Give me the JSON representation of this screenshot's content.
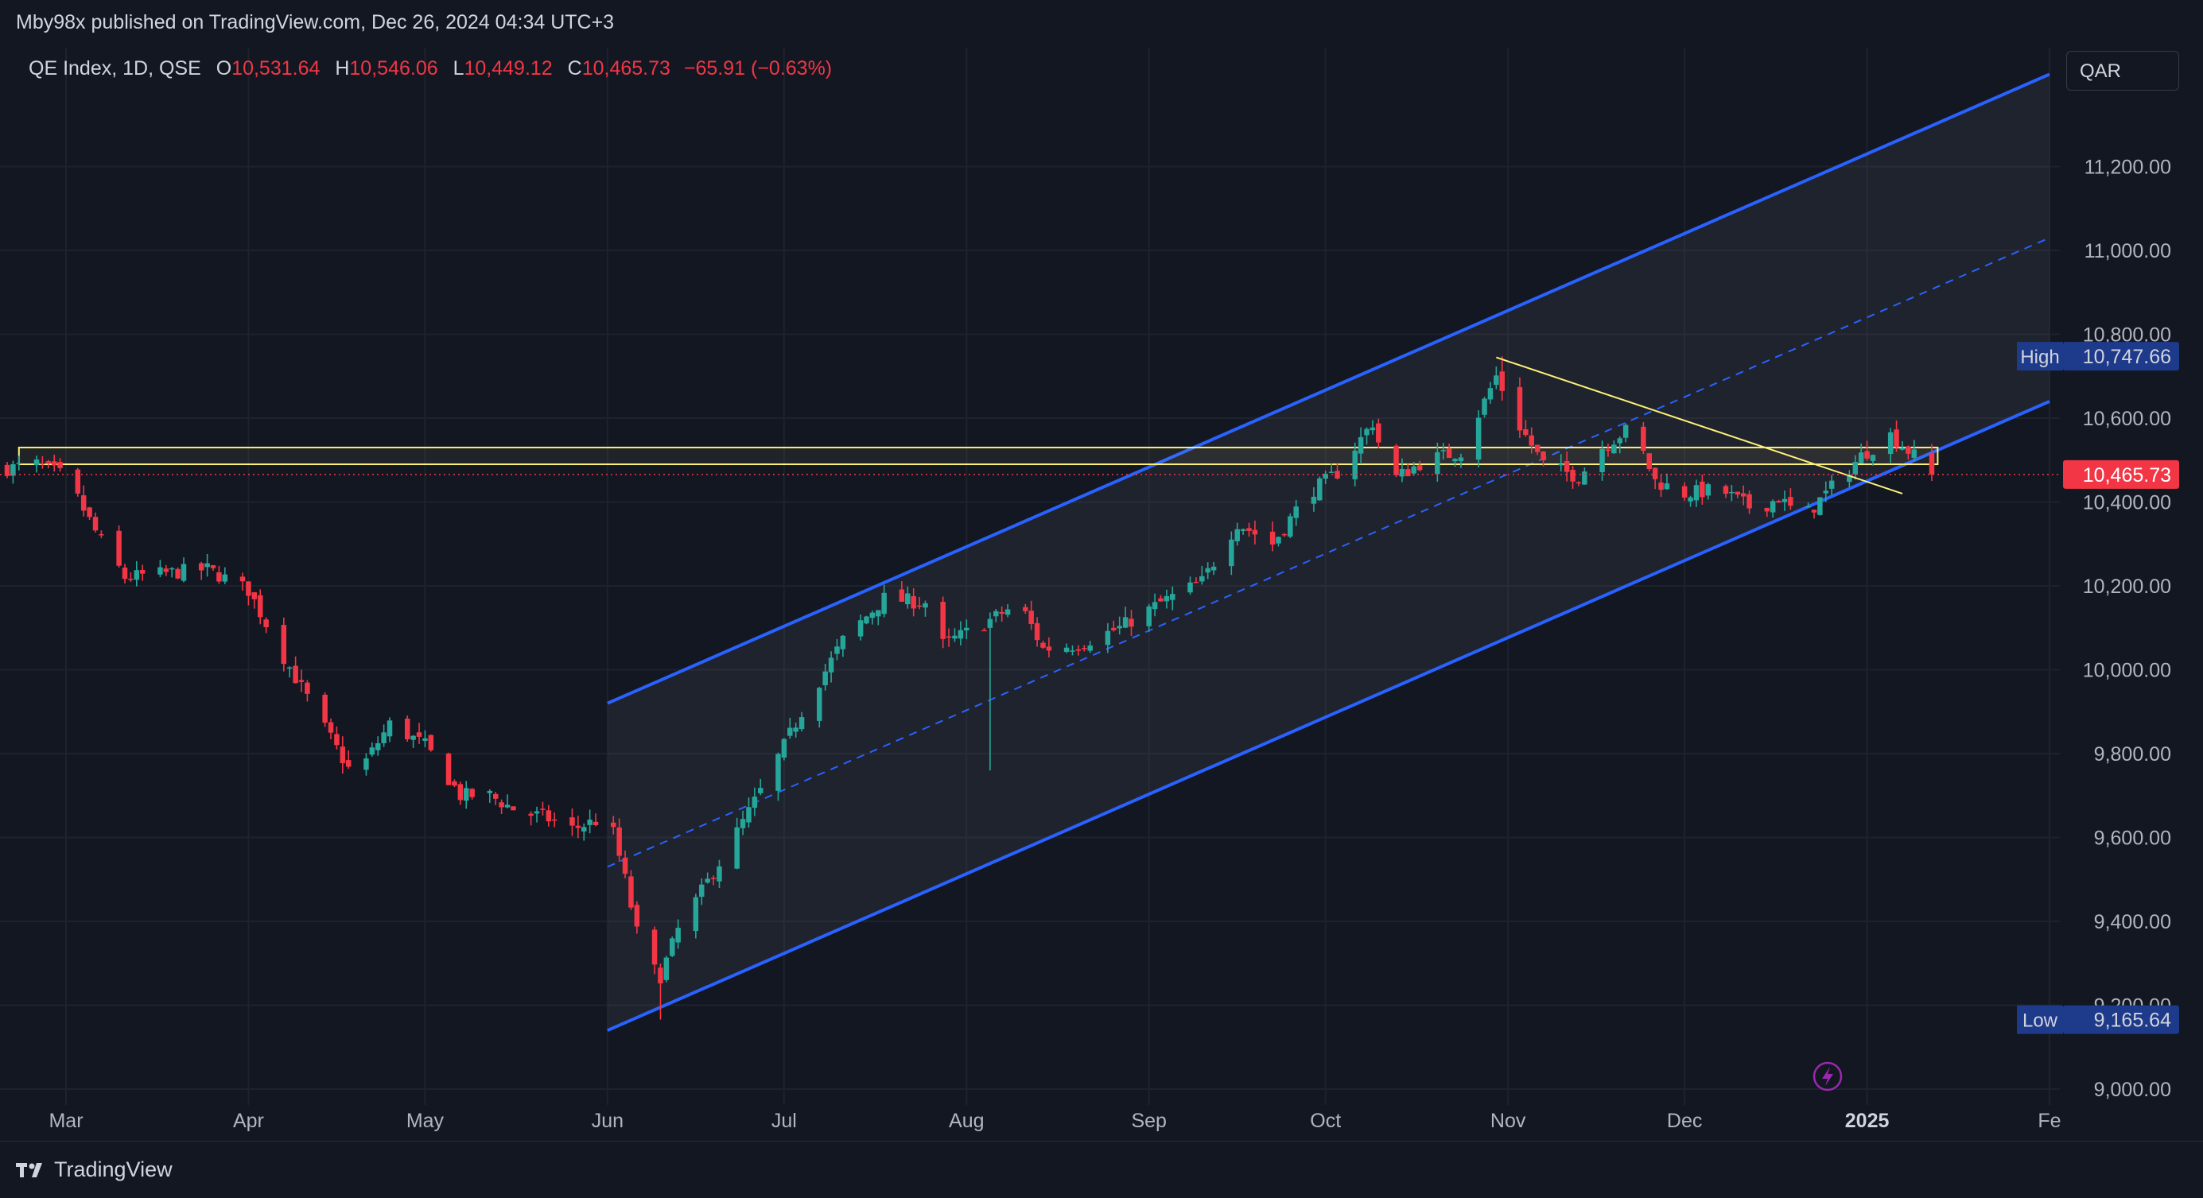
{
  "header": {
    "published_text": "Mby98x published on TradingView.com, Dec 26, 2024 04:34 UTC+3"
  },
  "legend": {
    "symbol": "QE Index, 1D, QSE",
    "open_label": "O",
    "open": "10,531.64",
    "high_label": "H",
    "high": "10,546.06",
    "low_label": "L",
    "low": "10,449.12",
    "close_label": "C",
    "close": "10,465.73",
    "change": "−65.91 (−0.63%)"
  },
  "currency": "QAR",
  "footer": {
    "brand": "TradingView"
  },
  "colors": {
    "background": "#131722",
    "grid": "#1e222d",
    "up": "#26a69a",
    "down": "#f23645",
    "channel": "#2962ff",
    "trendline": "#fbf179",
    "axis_text": "#b2b5be"
  },
  "chart_data": {
    "type": "candlestick",
    "title": "QE Index, 1D, QSE",
    "xlabel": "",
    "ylabel": "",
    "ylim": [
      9000,
      11450
    ],
    "y_ticks": [
      "11,200.00",
      "11,000.00",
      "10,800.00",
      "10,600.00",
      "10,400.00",
      "10,200.00",
      "10,000.00",
      "9,800.00",
      "9,600.00",
      "9,400.00",
      "9,200.00",
      "9,000.00"
    ],
    "y_tick_values": [
      11200,
      11000,
      10800,
      10600,
      10400,
      10200,
      10000,
      9800,
      9600,
      9400,
      9200,
      9000
    ],
    "x_ticks": [
      {
        "label": "Mar",
        "date": "2024-03-01"
      },
      {
        "label": "Apr",
        "date": "2024-04-01"
      },
      {
        "label": "May",
        "date": "2024-05-01"
      },
      {
        "label": "Jun",
        "date": "2024-06-01"
      },
      {
        "label": "Jul",
        "date": "2024-07-01"
      },
      {
        "label": "Aug",
        "date": "2024-08-01"
      },
      {
        "label": "Sep",
        "date": "2024-09-01"
      },
      {
        "label": "Oct",
        "date": "2024-10-01"
      },
      {
        "label": "Nov",
        "date": "2024-11-01"
      },
      {
        "label": "Dec",
        "date": "2024-12-01"
      },
      {
        "label": "2025",
        "date": "2025-01-01",
        "bold": true
      },
      {
        "label": "Fe",
        "date": "2025-02-01"
      }
    ],
    "x_range": [
      "2024-02-20",
      "2025-02-01"
    ],
    "price_labels": {
      "high_label": "High",
      "high_value": "10,747.66",
      "high": 10747.66,
      "low_label": "Low",
      "low_value": "9,165.64",
      "low": 9165.64,
      "last_value": "10,465.73",
      "last": 10465.73
    },
    "anchors": [
      [
        "2024-02-20",
        10480
      ],
      [
        "2024-02-25",
        10490
      ],
      [
        "2024-03-01",
        10460
      ],
      [
        "2024-03-06",
        10330
      ],
      [
        "2024-03-11",
        10220
      ],
      [
        "2024-03-18",
        10230
      ],
      [
        "2024-03-25",
        10240
      ],
      [
        "2024-04-01",
        10190
      ],
      [
        "2024-04-07",
        10030
      ],
      [
        "2024-04-14",
        9860
      ],
      [
        "2024-04-19",
        9740
      ],
      [
        "2024-04-25",
        9870
      ],
      [
        "2024-05-01",
        9820
      ],
      [
        "2024-05-07",
        9700
      ],
      [
        "2024-05-12",
        9700
      ],
      [
        "2024-05-17",
        9660
      ],
      [
        "2024-05-21",
        9650
      ],
      [
        "2024-05-26",
        9620
      ],
      [
        "2024-05-30",
        9640
      ],
      [
        "2024-06-02",
        9610
      ],
      [
        "2024-06-04",
        9500
      ],
      [
        "2024-06-07",
        9310
      ],
      [
        "2024-06-10",
        9270
      ],
      [
        "2024-06-13",
        9380
      ],
      [
        "2024-06-20",
        9540
      ],
      [
        "2024-06-27",
        9710
      ],
      [
        "2024-07-04",
        9900
      ],
      [
        "2024-07-11",
        10070
      ],
      [
        "2024-07-18",
        10170
      ],
      [
        "2024-07-25",
        10160
      ],
      [
        "2024-07-28",
        10060
      ],
      [
        "2024-08-04",
        10110
      ],
      [
        "2024-08-10",
        10160
      ],
      [
        "2024-08-14",
        10050
      ],
      [
        "2024-08-20",
        10060
      ],
      [
        "2024-08-27",
        10100
      ],
      [
        "2024-09-03",
        10160
      ],
      [
        "2024-09-10",
        10210
      ],
      [
        "2024-09-16",
        10350
      ],
      [
        "2024-09-22",
        10300
      ],
      [
        "2024-09-28",
        10420
      ],
      [
        "2024-10-03",
        10470
      ],
      [
        "2024-10-09",
        10590
      ],
      [
        "2024-10-12",
        10450
      ],
      [
        "2024-10-18",
        10500
      ],
      [
        "2024-10-24",
        10520
      ],
      [
        "2024-10-30",
        10700
      ],
      [
        "2024-11-03",
        10580
      ],
      [
        "2024-11-07",
        10490
      ],
      [
        "2024-11-13",
        10460
      ],
      [
        "2024-11-17",
        10530
      ],
      [
        "2024-11-22",
        10580
      ],
      [
        "2024-11-26",
        10450
      ],
      [
        "2024-12-01",
        10420
      ],
      [
        "2024-12-07",
        10430
      ],
      [
        "2024-12-13",
        10380
      ],
      [
        "2024-12-17",
        10410
      ],
      [
        "2024-12-21",
        10360
      ],
      [
        "2024-12-25",
        10420
      ],
      [
        "2024-12-31",
        10510
      ],
      [
        "2025-01-05",
        10560
      ],
      [
        "2025-01-09",
        10510
      ],
      [
        "2025-01-12",
        10465.73
      ]
    ],
    "regression_channel": {
      "start": "2024-06-01",
      "end": "2025-02-01",
      "upper": [
        9920,
        11420
      ],
      "middle": [
        9530,
        11030
      ],
      "lower": [
        9140,
        10640
      ]
    },
    "trendline": {
      "from": [
        "2024-10-30",
        10745
      ],
      "to": [
        "2025-01-07",
        10420
      ]
    },
    "horizontal_zone": {
      "from": "2024-02-22",
      "to": "2025-01-13",
      "top": 10530,
      "bottom": 10490
    },
    "grid": true,
    "legend_position": "top-left"
  }
}
